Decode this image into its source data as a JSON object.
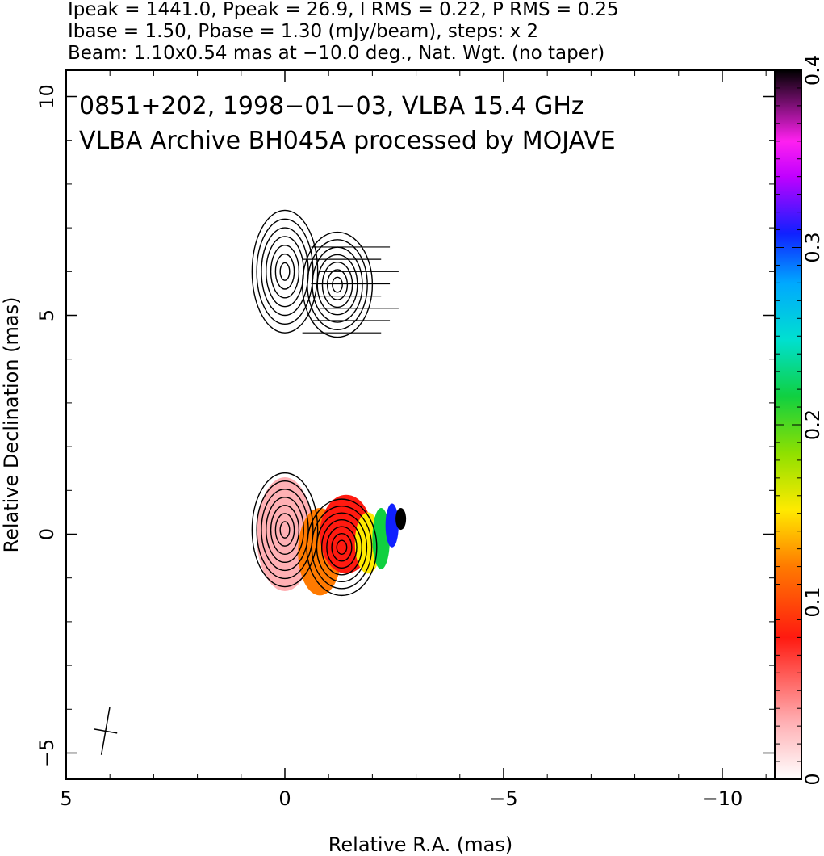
{
  "header": {
    "line1": "Ipeak = 1441.0, Ppeak = 26.9, I RMS = 0.22, P RMS = 0.25",
    "line2": "Ibase = 1.50, Pbase = 1.30 (mJy/beam), steps: x 2",
    "line3": "Beam: 1.10x0.54 mas at −10.0 deg., Nat. Wgt. (no taper)"
  },
  "plot_title": {
    "line1": "0851+202, 1998−01−03, VLBA 15.4 GHz",
    "line2": "VLBA Archive BH045A processed by MOJAVE"
  },
  "chart_data": {
    "type": "heatmap",
    "xlabel": "Relative R.A. (mas)",
    "ylabel": "Relative Declination (mas)",
    "xlim": [
      5,
      -11.2
    ],
    "ylim": [
      -5.6,
      10.6
    ],
    "x_ticks": [
      {
        "value": 5,
        "label": "5"
      },
      {
        "value": 0,
        "label": "0"
      },
      {
        "value": -5,
        "label": "−5"
      },
      {
        "value": -10,
        "label": "−10"
      }
    ],
    "y_ticks": [
      {
        "value": -5,
        "label": "−5"
      },
      {
        "value": 0,
        "label": "0"
      },
      {
        "value": 5,
        "label": "5"
      },
      {
        "value": 10,
        "label": "10"
      }
    ],
    "colorbar": {
      "range": [
        0,
        0.4
      ],
      "ticks": [
        {
          "value": 0,
          "label": "0"
        },
        {
          "value": 0.1,
          "label": "0.1"
        },
        {
          "value": 0.2,
          "label": "0.2"
        },
        {
          "value": 0.3,
          "label": "0.3"
        },
        {
          "value": 0.4,
          "label": "0.4"
        }
      ]
    },
    "beam": {
      "major_mas": 1.1,
      "minor_mas": 0.54,
      "pa_deg": -10.0,
      "center": [
        4.1,
        -4.5
      ]
    },
    "components": [
      {
        "ra": 0.0,
        "dec": 6.0,
        "rx": 0.75,
        "ry": 1.4
      },
      {
        "ra": -1.2,
        "dec": 5.7,
        "rx": 0.8,
        "ry": 1.2
      },
      {
        "ra": 0.0,
        "dec": 0.1,
        "rx": 0.75,
        "ry": 1.3
      },
      {
        "ra": -1.3,
        "dec": -0.3,
        "rx": 0.8,
        "ry": 1.1
      }
    ],
    "fractional_polarization_patches": [
      {
        "ra": 0.0,
        "dec": 0.0,
        "rx": 0.65,
        "ry": 1.3,
        "value": 0.03
      },
      {
        "ra": -0.8,
        "dec": -0.4,
        "rx": 0.5,
        "ry": 1.0,
        "value": 0.14
      },
      {
        "ra": -1.4,
        "dec": 0.0,
        "rx": 0.6,
        "ry": 0.9,
        "value": 0.09
      },
      {
        "ra": -1.9,
        "dec": -0.2,
        "rx": 0.3,
        "ry": 0.7,
        "value": 0.16
      },
      {
        "ra": -2.2,
        "dec": -0.1,
        "rx": 0.2,
        "ry": 0.7,
        "value": 0.24
      },
      {
        "ra": -2.45,
        "dec": 0.2,
        "rx": 0.15,
        "ry": 0.5,
        "value": 0.32
      },
      {
        "ra": -2.65,
        "dec": 0.35,
        "rx": 0.12,
        "ry": 0.25,
        "value": 0.4
      }
    ]
  }
}
